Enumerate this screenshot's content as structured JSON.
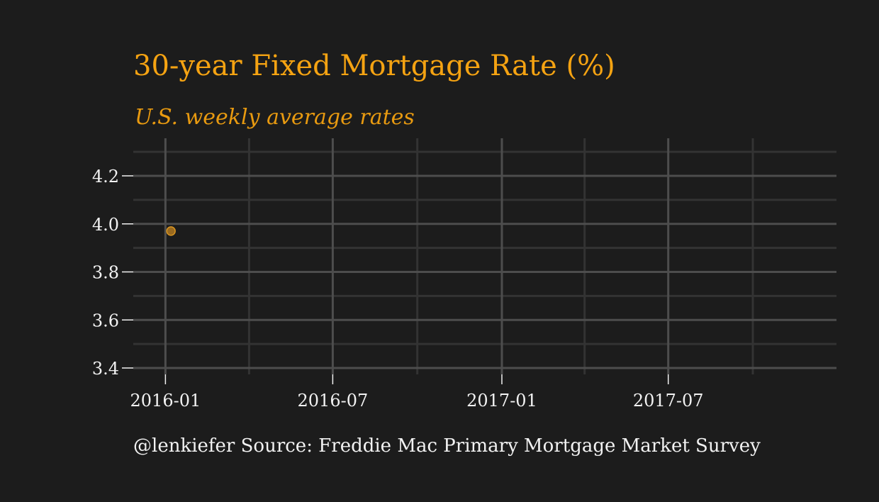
{
  "chart_data": {
    "type": "scatter",
    "title": "30-year Fixed Mortgage Rate (%)",
    "subtitle": "U.S. weekly average rates",
    "caption": "@lenkiefer Source: Freddie Mac Primary Mortgage Market Survey",
    "xlabel": "",
    "ylabel": "",
    "x_ticks": [
      "2016-01",
      "2016-07",
      "2017-01",
      "2017-07"
    ],
    "x_tick_dates": [
      "2016-01-01",
      "2016-07-01",
      "2017-01-01",
      "2017-07-01"
    ],
    "xlim": [
      "2015-11-27",
      "2017-12-31"
    ],
    "y_ticks": [
      "3.4",
      "3.6",
      "3.8",
      "4.0",
      "4.2"
    ],
    "ylim": [
      3.4,
      4.3
    ],
    "points": [
      {
        "date": "2016-01-07",
        "value": 3.97
      }
    ],
    "grid": true,
    "colors": {
      "background": "#1c1c1c",
      "grid_major": "#4d4d4d",
      "grid_minor": "#333333",
      "title": "#f5a312",
      "subtitle": "#e89a10",
      "point_fill": "#9a6a1f",
      "point_stroke": "#d99521",
      "text": "#f2f2f2"
    }
  }
}
